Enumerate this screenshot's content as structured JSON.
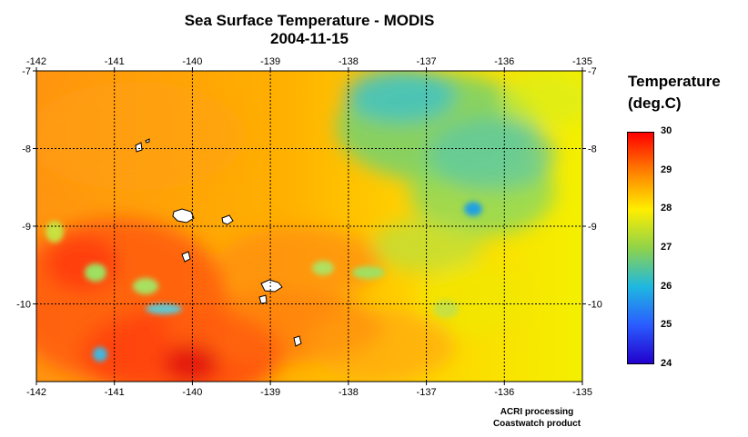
{
  "title": "Sea Surface Temperature - MODIS",
  "date": "2004-11-15",
  "map": {
    "lon_range": [
      -142,
      -135
    ],
    "lat_range": [
      -11,
      -7
    ],
    "lon_ticks": [
      "-142",
      "-141",
      "-140",
      "-139",
      "-138",
      "-137",
      "-136",
      "-135"
    ],
    "lat_ticks": [
      "-7",
      "-8",
      "-9",
      "-10"
    ],
    "grid": "dashed",
    "islands_color": "#ffffff"
  },
  "legend": {
    "title": "Temperature",
    "unit": "(deg.C)",
    "min": 24,
    "max": 30,
    "ticks": [
      "30",
      "29",
      "28",
      "27",
      "26",
      "25",
      "24"
    ],
    "colors": [
      "#ff0000",
      "#ff7f00",
      "#ffee00",
      "#8fd34a",
      "#1fb8e0",
      "#2a5cff",
      "#2200cc"
    ]
  },
  "credits": {
    "line1": "ACRI processing",
    "line2": "Coastwatch product"
  }
}
